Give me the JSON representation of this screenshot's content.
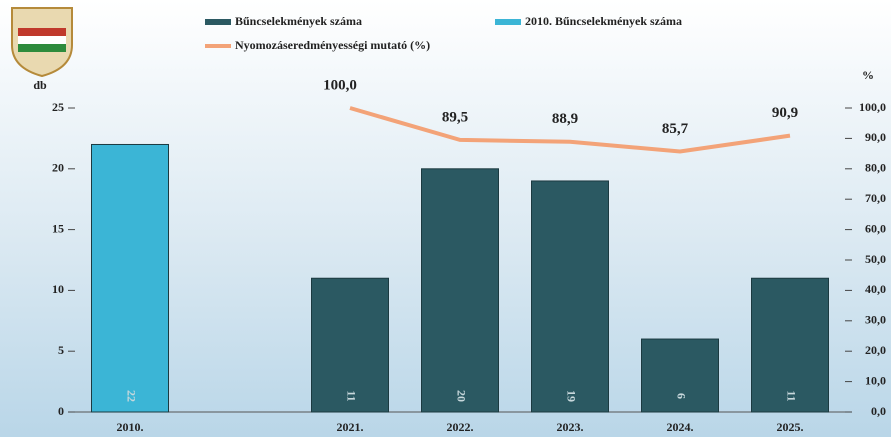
{
  "chart_data": {
    "type": "bar",
    "categories": [
      "2010.",
      null,
      "2021.",
      "2022.",
      "2023.",
      "2024.",
      "2025."
    ],
    "series": [
      {
        "name": "2010. Bűncselekmények száma",
        "color": "#3bb5d6",
        "values": [
          22,
          null,
          null,
          null,
          null,
          null,
          null
        ]
      },
      {
        "name": "Bűncselekmények száma",
        "color": "#2b5962",
        "values": [
          null,
          null,
          11,
          20,
          19,
          6,
          11
        ]
      },
      {
        "name": "Nyomozáseredményességi mutató (%)",
        "type": "line",
        "axis": "y2",
        "color": "#f3a378",
        "values": [
          null,
          null,
          100,
          89.5,
          88.9,
          85.7,
          90.9
        ],
        "value_labels": [
          null,
          null,
          "100,0",
          "89,5",
          "88,9",
          "85,7",
          "90,9"
        ]
      }
    ],
    "ylabel": "db",
    "y2label": "%",
    "ylim": [
      0,
      25
    ],
    "yticks": [
      0,
      5,
      10,
      15,
      20,
      25
    ],
    "y2lim": [
      0,
      100
    ],
    "y2ticks": [
      {
        "value": 0,
        "label": "0,0"
      },
      {
        "value": 10,
        "label": "10,0"
      },
      {
        "value": 20,
        "label": "20,0"
      },
      {
        "value": 30,
        "label": "30,0"
      },
      {
        "value": 40,
        "label": "40,0"
      },
      {
        "value": 50,
        "label": "50,0"
      },
      {
        "value": 60,
        "label": "60,0"
      },
      {
        "value": 70,
        "label": "70,0"
      },
      {
        "value": 80,
        "label": "80,0"
      },
      {
        "value": 90,
        "label": "90,0"
      },
      {
        "value": 100,
        "label": "100,0"
      }
    ]
  }
}
